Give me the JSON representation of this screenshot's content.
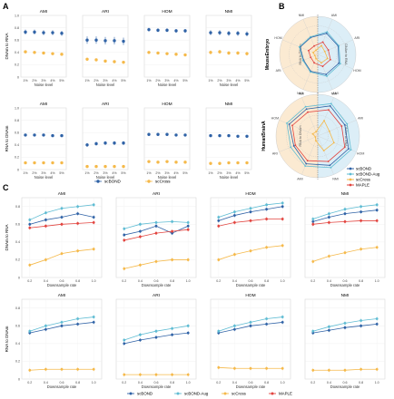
{
  "panels": {
    "a": "A",
    "b": "B",
    "c": "C"
  },
  "colors": {
    "scBOND": "#2f62a6",
    "scBOND-Aug": "#5fbcd3",
    "scCross": "#f5b94a",
    "MAPLE": "#e2443f",
    "dna_zone": "#dceef7",
    "rna_zone": "#fbead2"
  },
  "chart_data": [
    {
      "panel": "A",
      "type": "scatter",
      "row_label": "DNAm to RNA",
      "xlabel": "Noise level",
      "categories": [
        "1%",
        "2%",
        "3%",
        "4%",
        "5%"
      ],
      "ylim": [
        0,
        1
      ],
      "yticks": [
        "0",
        "0.2",
        "0.4",
        "0.6",
        "0.8",
        "1.0"
      ],
      "metrics": [
        {
          "name": "AMI",
          "series": [
            {
              "name": "scBOND",
              "values": [
                0.73,
                0.73,
                0.72,
                0.72,
                0.71
              ],
              "err": [
                0.04,
                0.04,
                0.04,
                0.04,
                0.04
              ]
            },
            {
              "name": "scCross",
              "values": [
                0.41,
                0.4,
                0.39,
                0.38,
                0.37
              ],
              "err": [
                0.02,
                0.02,
                0.02,
                0.02,
                0.02
              ]
            }
          ]
        },
        {
          "name": "ARI",
          "series": [
            {
              "name": "scBOND",
              "values": [
                0.6,
                0.6,
                0.59,
                0.59,
                0.58
              ],
              "err": [
                0.06,
                0.06,
                0.06,
                0.06,
                0.06
              ]
            },
            {
              "name": "scCross",
              "values": [
                0.29,
                0.28,
                0.26,
                0.25,
                0.24
              ],
              "err": [
                0.02,
                0.02,
                0.02,
                0.02,
                0.02
              ]
            }
          ]
        },
        {
          "name": "HOM",
          "series": [
            {
              "name": "scBOND",
              "values": [
                0.77,
                0.76,
                0.76,
                0.75,
                0.75
              ],
              "err": [
                0.03,
                0.03,
                0.03,
                0.03,
                0.03
              ]
            },
            {
              "name": "scCross",
              "values": [
                0.4,
                0.39,
                0.38,
                0.37,
                0.36
              ],
              "err": [
                0.02,
                0.02,
                0.02,
                0.02,
                0.02
              ]
            }
          ]
        },
        {
          "name": "NMI",
          "series": [
            {
              "name": "scBOND",
              "values": [
                0.72,
                0.72,
                0.71,
                0.71,
                0.7
              ],
              "err": [
                0.04,
                0.04,
                0.04,
                0.04,
                0.04
              ]
            },
            {
              "name": "scCross",
              "values": [
                0.4,
                0.41,
                0.39,
                0.39,
                0.38
              ],
              "err": [
                0.03,
                0.03,
                0.03,
                0.03,
                0.03
              ]
            }
          ]
        }
      ]
    },
    {
      "panel": "A",
      "type": "scatter",
      "row_label": "RNA to DNAm",
      "xlabel": "Noise level",
      "categories": [
        "1%",
        "2%",
        "3%",
        "4%",
        "5%"
      ],
      "ylim": [
        0,
        1
      ],
      "yticks": [
        "0",
        "0.2",
        "0.4",
        "0.6",
        "0.8",
        "1.0"
      ],
      "metrics": [
        {
          "name": "AMI",
          "series": [
            {
              "name": "scBOND",
              "values": [
                0.56,
                0.56,
                0.56,
                0.55,
                0.55
              ],
              "err": [
                0.02,
                0.02,
                0.02,
                0.02,
                0.02
              ]
            },
            {
              "name": "scCross",
              "values": [
                0.11,
                0.11,
                0.11,
                0.11,
                0.11
              ],
              "err": [
                0.02,
                0.02,
                0.02,
                0.02,
                0.02
              ]
            }
          ]
        },
        {
          "name": "ARI",
          "series": [
            {
              "name": "scBOND",
              "values": [
                0.4,
                0.42,
                0.43,
                0.43,
                0.43
              ],
              "err": [
                0.03,
                0.03,
                0.03,
                0.03,
                0.03
              ]
            },
            {
              "name": "scCross",
              "values": [
                0.05,
                0.05,
                0.05,
                0.05,
                0.05
              ],
              "err": [
                0.02,
                0.02,
                0.02,
                0.02,
                0.02
              ]
            }
          ]
        },
        {
          "name": "HOM",
          "series": [
            {
              "name": "scBOND",
              "values": [
                0.57,
                0.57,
                0.57,
                0.56,
                0.56
              ],
              "err": [
                0.02,
                0.02,
                0.02,
                0.02,
                0.02
              ]
            },
            {
              "name": "scCross",
              "values": [
                0.13,
                0.12,
                0.13,
                0.12,
                0.12
              ],
              "err": [
                0.02,
                0.02,
                0.02,
                0.02,
                0.02
              ]
            }
          ]
        },
        {
          "name": "NMI",
          "series": [
            {
              "name": "scBOND",
              "values": [
                0.55,
                0.55,
                0.55,
                0.54,
                0.54
              ],
              "err": [
                0.02,
                0.02,
                0.02,
                0.02,
                0.02
              ]
            },
            {
              "name": "scCross",
              "values": [
                0.1,
                0.1,
                0.11,
                0.11,
                0.11
              ],
              "err": [
                0.02,
                0.02,
                0.02,
                0.02,
                0.02
              ]
            }
          ]
        }
      ]
    },
    {
      "panel": "B",
      "type": "radar",
      "dataset": "MouseEmbryo",
      "axes": [
        "AMI",
        "ARI",
        "HOM",
        "NMI",
        "AMI",
        "ARI",
        "HOM",
        "NMI"
      ],
      "zone_labels": [
        "RNA to DNAm",
        "DNAm to RNA"
      ],
      "series": [
        {
          "name": "scBOND",
          "values": [
            0.6,
            0.58,
            0.6,
            0.57,
            0.48,
            0.4,
            0.5,
            0.48
          ]
        },
        {
          "name": "scBOND-Aug",
          "values": [
            0.64,
            0.6,
            0.64,
            0.62,
            0.5,
            0.42,
            0.52,
            0.5
          ]
        },
        {
          "name": "scCross",
          "values": [
            0.25,
            0.2,
            0.28,
            0.24,
            0.12,
            0.08,
            0.13,
            0.12
          ]
        },
        {
          "name": "MAPLE",
          "values": [
            0.35,
            0.3,
            0.36,
            0.34,
            0.24,
            0.2,
            0.26,
            0.24
          ]
        }
      ]
    },
    {
      "panel": "B",
      "type": "radar",
      "dataset": "HumanBrainA",
      "axes": [
        "AMI",
        "ARI",
        "HOM",
        "NMI",
        "AMI",
        "ARI",
        "HOM",
        "NMI"
      ],
      "zone_labels": [
        "RNA to DNAm",
        "DNAm to RNA"
      ],
      "series": [
        {
          "name": "scBOND",
          "values": [
            0.78,
            0.7,
            0.8,
            0.76,
            0.72,
            0.62,
            0.74,
            0.7
          ]
        },
        {
          "name": "scBOND-Aug",
          "values": [
            0.84,
            0.76,
            0.86,
            0.82,
            0.78,
            0.7,
            0.8,
            0.76
          ]
        },
        {
          "name": "scCross",
          "values": [
            0.4,
            0.3,
            0.42,
            0.38,
            0.12,
            0.06,
            0.13,
            0.11
          ]
        },
        {
          "name": "MAPLE",
          "values": [
            0.68,
            0.62,
            0.7,
            0.66,
            0.64,
            0.58,
            0.66,
            0.62
          ]
        }
      ]
    },
    {
      "panel": "C",
      "type": "line",
      "row_label": "DNAm to RNA",
      "xlabel": "Downsample rate",
      "x": [
        0.2,
        0.4,
        0.6,
        0.8,
        1.0
      ],
      "xticks": [
        "0.2",
        "0.4",
        "0.6",
        "0.8",
        "1.0"
      ],
      "ylim": [
        0,
        0.9
      ],
      "yticks": [
        "0",
        "0.2",
        "0.4",
        "0.6",
        "0.8"
      ],
      "metrics": [
        {
          "name": "AMI",
          "series": [
            {
              "name": "scBOND",
              "values": [
                0.6,
                0.65,
                0.68,
                0.72,
                0.68
              ]
            },
            {
              "name": "scBOND-Aug",
              "values": [
                0.65,
                0.73,
                0.78,
                0.8,
                0.82
              ]
            },
            {
              "name": "scCross",
              "values": [
                0.14,
                0.2,
                0.27,
                0.3,
                0.32
              ]
            },
            {
              "name": "MAPLE",
              "values": [
                0.56,
                0.58,
                0.6,
                0.61,
                0.62
              ]
            }
          ]
        },
        {
          "name": "ARI",
          "series": [
            {
              "name": "scBOND",
              "values": [
                0.48,
                0.52,
                0.58,
                0.5,
                0.58
              ]
            },
            {
              "name": "scBOND-Aug",
              "values": [
                0.55,
                0.6,
                0.62,
                0.63,
                0.62
              ]
            },
            {
              "name": "scCross",
              "values": [
                0.1,
                0.14,
                0.18,
                0.2,
                0.2
              ]
            },
            {
              "name": "MAPLE",
              "values": [
                0.42,
                0.46,
                0.5,
                0.52,
                0.54
              ]
            }
          ]
        },
        {
          "name": "HOM",
          "series": [
            {
              "name": "scBOND",
              "values": [
                0.64,
                0.7,
                0.74,
                0.77,
                0.8
              ]
            },
            {
              "name": "scBOND-Aug",
              "values": [
                0.68,
                0.74,
                0.78,
                0.82,
                0.84
              ]
            },
            {
              "name": "scCross",
              "values": [
                0.2,
                0.26,
                0.3,
                0.34,
                0.36
              ]
            },
            {
              "name": "MAPLE",
              "values": [
                0.58,
                0.62,
                0.64,
                0.66,
                0.66
              ]
            }
          ]
        },
        {
          "name": "NMI",
          "series": [
            {
              "name": "scBOND",
              "values": [
                0.63,
                0.68,
                0.72,
                0.74,
                0.76
              ]
            },
            {
              "name": "scBOND-Aug",
              "values": [
                0.66,
                0.72,
                0.77,
                0.8,
                0.82
              ]
            },
            {
              "name": "scCross",
              "values": [
                0.18,
                0.24,
                0.28,
                0.32,
                0.34
              ]
            },
            {
              "name": "MAPLE",
              "values": [
                0.6,
                0.62,
                0.63,
                0.64,
                0.64
              ]
            }
          ]
        }
      ]
    },
    {
      "panel": "C",
      "type": "line",
      "row_label": "RNA to DNAm",
      "xlabel": "Downsample rate",
      "x": [
        0.2,
        0.4,
        0.6,
        0.8,
        1.0
      ],
      "xticks": [
        "0.2",
        "0.4",
        "0.6",
        "0.8",
        "1.0"
      ],
      "ylim": [
        0,
        0.9
      ],
      "yticks": [
        "0",
        "0.2",
        "0.4",
        "0.6",
        "0.8"
      ],
      "metrics": [
        {
          "name": "AMI",
          "series": [
            {
              "name": "scBOND",
              "values": [
                0.52,
                0.56,
                0.6,
                0.62,
                0.64
              ]
            },
            {
              "name": "scBOND-Aug",
              "values": [
                0.54,
                0.6,
                0.64,
                0.68,
                0.7
              ]
            },
            {
              "name": "scCross",
              "values": [
                0.1,
                0.11,
                0.11,
                0.11,
                0.11
              ]
            }
          ]
        },
        {
          "name": "ARI",
          "series": [
            {
              "name": "scBOND",
              "values": [
                0.4,
                0.44,
                0.47,
                0.5,
                0.52
              ]
            },
            {
              "name": "scBOND-Aug",
              "values": [
                0.44,
                0.5,
                0.54,
                0.57,
                0.6
              ]
            },
            {
              "name": "scCross",
              "values": [
                0.05,
                0.05,
                0.05,
                0.05,
                0.05
              ]
            }
          ]
        },
        {
          "name": "HOM",
          "series": [
            {
              "name": "scBOND",
              "values": [
                0.52,
                0.56,
                0.6,
                0.62,
                0.64
              ]
            },
            {
              "name": "scBOND-Aug",
              "values": [
                0.54,
                0.6,
                0.64,
                0.68,
                0.7
              ]
            },
            {
              "name": "scCross",
              "values": [
                0.13,
                0.12,
                0.12,
                0.12,
                0.12
              ]
            }
          ]
        },
        {
          "name": "NMI",
          "series": [
            {
              "name": "scBOND",
              "values": [
                0.52,
                0.55,
                0.58,
                0.6,
                0.62
              ]
            },
            {
              "name": "scBOND-Aug",
              "values": [
                0.54,
                0.59,
                0.63,
                0.66,
                0.68
              ]
            },
            {
              "name": "scCross",
              "values": [
                0.1,
                0.1,
                0.1,
                0.11,
                0.11
              ]
            }
          ]
        }
      ]
    }
  ],
  "legend_a": [
    "scBOND",
    "scCross"
  ],
  "legend_b": [
    "scBOND",
    "scBOND-Aug",
    "scCross",
    "MAPLE"
  ],
  "legend_c": [
    "scBOND",
    "scBOND-Aug",
    "scCross",
    "MAPLE"
  ]
}
